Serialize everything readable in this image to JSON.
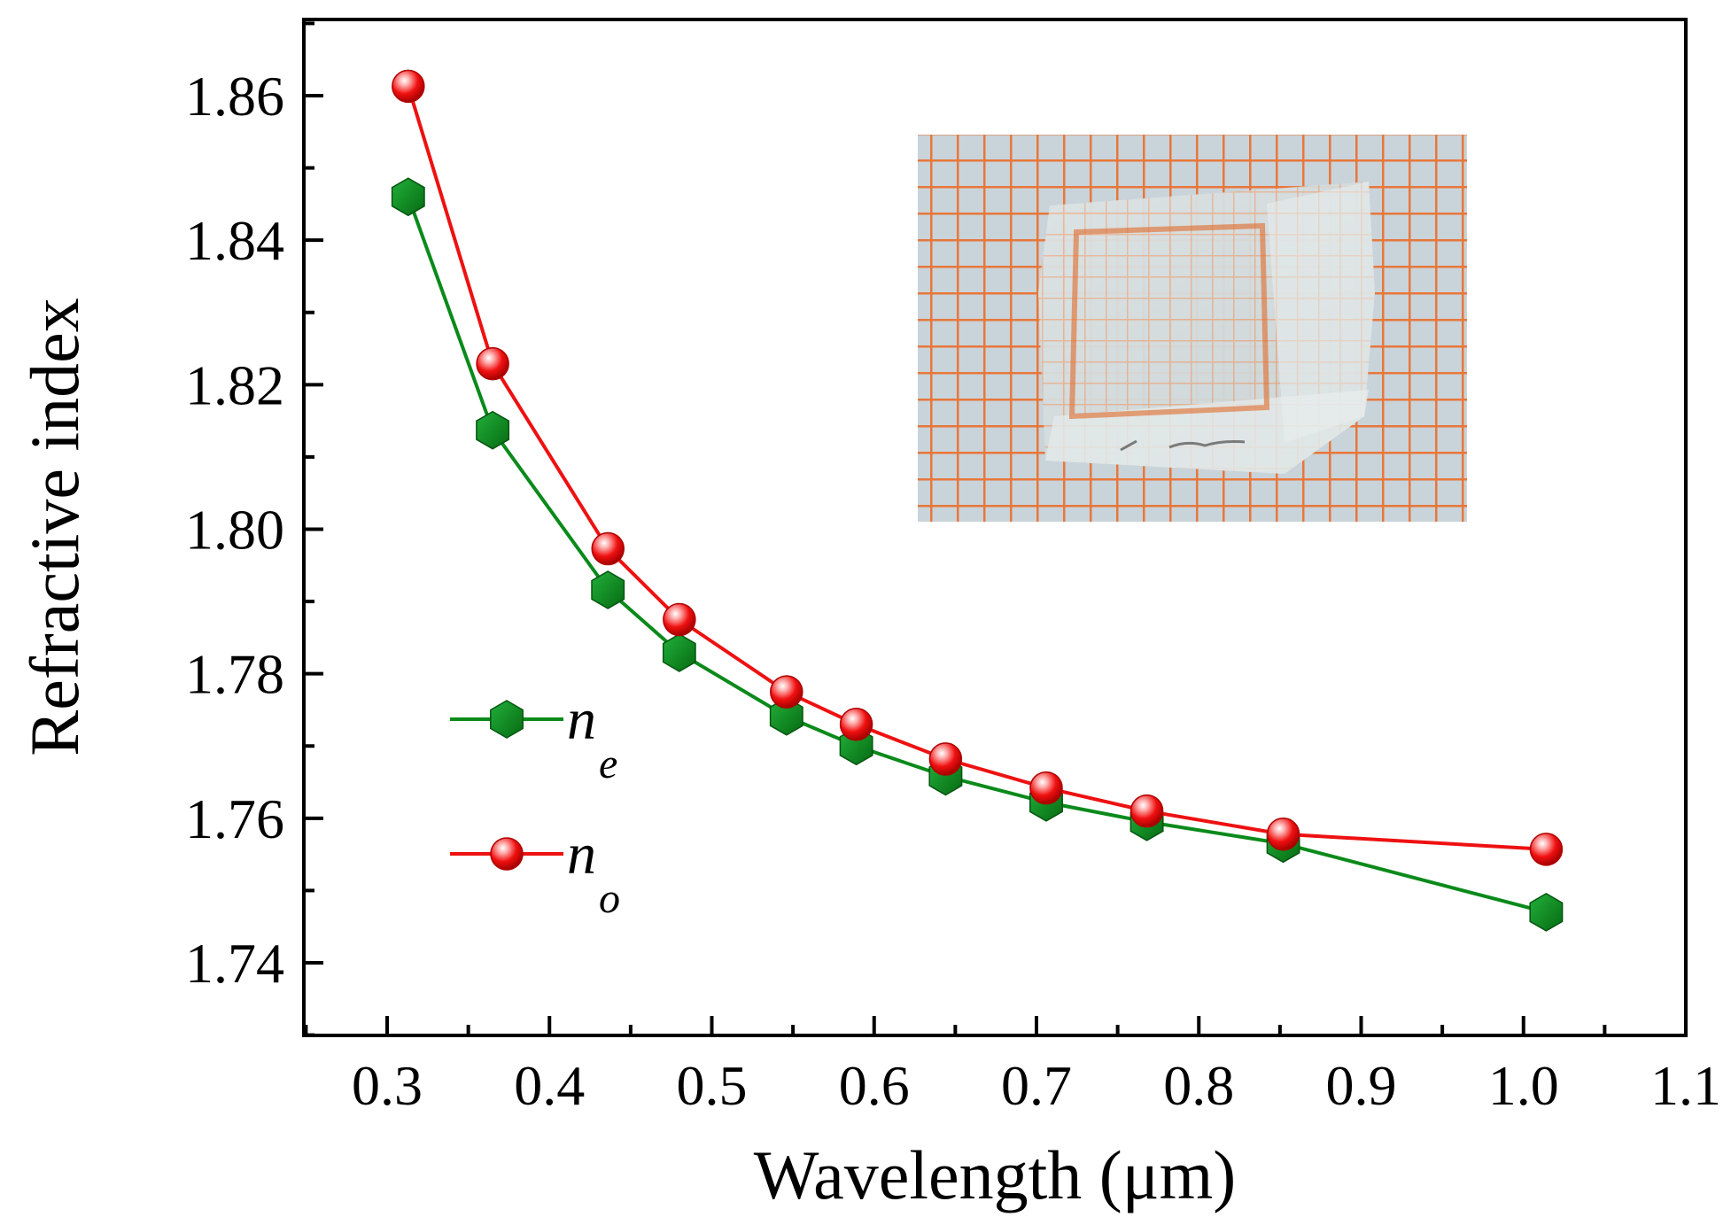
{
  "chart_data": {
    "type": "line",
    "title": "",
    "xlabel": "Wavelength (μm)",
    "ylabel": "Refractive index",
    "xlim": [
      0.25,
      1.1
    ],
    "ylim": [
      1.73,
      1.87
    ],
    "xticks": [
      0.3,
      0.4,
      0.5,
      0.6,
      0.7,
      0.8,
      0.9,
      1.0,
      1.1
    ],
    "xtick_labels": [
      "0.3",
      "0.4",
      "0.5",
      "0.6",
      "0.7",
      "0.8",
      "0.9",
      "1.0",
      "1.1"
    ],
    "yticks": [
      1.74,
      1.76,
      1.78,
      1.8,
      1.82,
      1.84,
      1.86
    ],
    "ytick_labels": [
      "1.74",
      "1.76",
      "1.78",
      "1.80",
      "1.82",
      "1.84",
      "1.86"
    ],
    "grid": false,
    "legend_position": "left-middle",
    "inset": "photo of crystal sample on orange grid paper",
    "x": [
      0.313,
      0.365,
      0.436,
      0.48,
      0.546,
      0.589,
      0.644,
      0.706,
      0.768,
      0.852,
      1.014
    ],
    "series": [
      {
        "name": "ne",
        "legend_main": "n",
        "legend_sub": "e",
        "marker": "hexagon",
        "color": "#0a8a1a",
        "values": [
          1.846,
          1.8137,
          1.7916,
          1.7829,
          1.7741,
          1.77,
          1.7658,
          1.7622,
          1.7595,
          1.7565,
          1.747
        ]
      },
      {
        "name": "no",
        "legend_main": "n",
        "legend_sub": "o",
        "marker": "sphere",
        "color": "#ee1111",
        "values": [
          1.8613,
          1.8229,
          1.7973,
          1.7875,
          1.7775,
          1.773,
          1.7682,
          1.7642,
          1.761,
          1.7578,
          1.7557
        ]
      }
    ]
  }
}
